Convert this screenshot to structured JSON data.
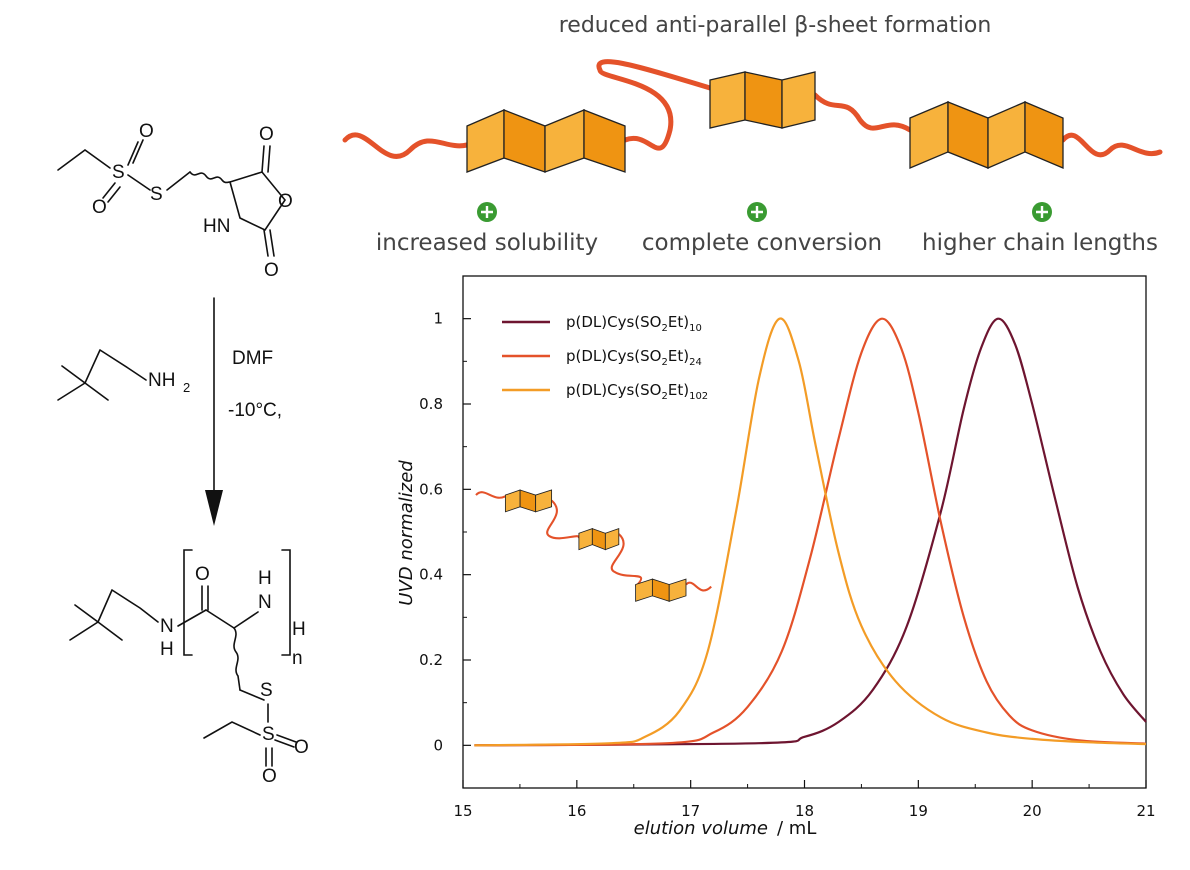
{
  "headline": "reduced anti-parallel β-sheet formation",
  "benefits": [
    {
      "label": "increased solubility"
    },
    {
      "label": "complete conversion"
    },
    {
      "label": "higher chain lengths"
    }
  ],
  "reaction": {
    "reagent": "DMF",
    "conditions": "-10°C,",
    "amine_label": "NH",
    "amine_sub": "2",
    "repeat_index": "n"
  },
  "colors": {
    "dark": "#6e1530",
    "mid": "#e4522a",
    "light": "#f39c26",
    "sheet_light": "#f7b23c",
    "sheet_dark": "#ef9412",
    "plus": "#3a9b32"
  },
  "chart_data": {
    "type": "line",
    "xlabel": "elution volume",
    "xunit": "/ mL",
    "ylabel": "UVD normalized",
    "xlim": [
      15,
      21
    ],
    "ylim": [
      -0.1,
      1.1
    ],
    "xticks": [
      15,
      16,
      17,
      18,
      19,
      20,
      21
    ],
    "yticks": [
      0,
      0.2,
      0.4,
      0.6,
      0.8,
      1
    ],
    "grid": false,
    "legend_position": "top-left",
    "series": [
      {
        "name": "p(DL)Cys(SO2Et)",
        "base": "p(DL)Cys(SO",
        "sub1": "2",
        "mid": "Et)",
        "sub2": "10",
        "color": "#6e1530",
        "peak_x": 19.7,
        "x": [
          15.1,
          17.6,
          18.0,
          18.3,
          18.6,
          18.9,
          19.2,
          19.4,
          19.55,
          19.7,
          19.85,
          20.0,
          20.2,
          20.4,
          20.6,
          20.8,
          21.0
        ],
        "y": [
          0.0,
          0.005,
          0.02,
          0.055,
          0.13,
          0.28,
          0.55,
          0.79,
          0.93,
          1.0,
          0.94,
          0.8,
          0.58,
          0.37,
          0.22,
          0.12,
          0.055
        ]
      },
      {
        "name": "p(DL)Cys(SO2Et)",
        "base": "p(DL)Cys(SO",
        "sub1": "2",
        "mid": "Et)",
        "sub2": "24",
        "color": "#e4522a",
        "peak_x": 18.68,
        "x": [
          15.1,
          16.8,
          17.2,
          17.5,
          17.8,
          18.05,
          18.3,
          18.5,
          18.68,
          18.85,
          19.0,
          19.2,
          19.4,
          19.6,
          19.8,
          20.0,
          20.4,
          21.0
        ],
        "y": [
          0.0,
          0.005,
          0.03,
          0.09,
          0.22,
          0.44,
          0.72,
          0.92,
          1.0,
          0.93,
          0.78,
          0.52,
          0.3,
          0.15,
          0.07,
          0.035,
          0.012,
          0.004
        ]
      },
      {
        "name": "p(DL)Cys(SO2Et)",
        "base": "p(DL)Cys(SO",
        "sub1": "2",
        "mid": "Et)",
        "sub2": "102",
        "color": "#f39c26",
        "peak_x": 17.78,
        "x": [
          15.1,
          16.3,
          16.6,
          16.9,
          17.15,
          17.4,
          17.6,
          17.78,
          17.95,
          18.1,
          18.3,
          18.5,
          18.8,
          19.2,
          19.6,
          20.0,
          20.5,
          21.0
        ],
        "y": [
          0.0,
          0.005,
          0.02,
          0.08,
          0.22,
          0.55,
          0.86,
          1.0,
          0.9,
          0.7,
          0.45,
          0.28,
          0.15,
          0.065,
          0.03,
          0.015,
          0.007,
          0.003
        ]
      }
    ]
  }
}
